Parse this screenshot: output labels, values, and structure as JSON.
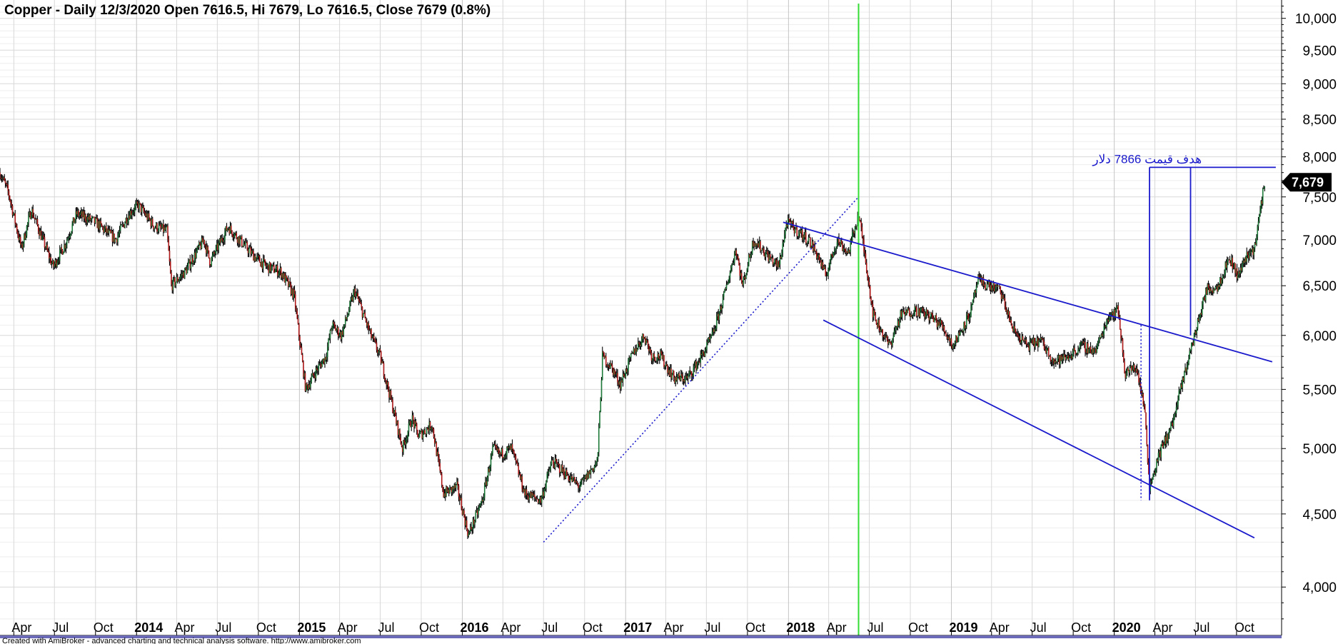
{
  "chart_data": {
    "type": "candlestick-line",
    "title": "Copper - Daily 12/3/2020 Open 7616.5, Hi 7679, Lo 7616.5, Close 7679 (0.8%)",
    "scale": "log",
    "ylim": [
      3700,
      10300
    ],
    "y_ticks": [
      {
        "value": 4000,
        "label": "4,000"
      },
      {
        "value": 4500,
        "label": "4,500"
      },
      {
        "value": 5000,
        "label": "5,000"
      },
      {
        "value": 5500,
        "label": "5,500"
      },
      {
        "value": 6000,
        "label": "6,000"
      },
      {
        "value": 6500,
        "label": "6,500"
      },
      {
        "value": 7000,
        "label": "7,000"
      },
      {
        "value": 7500,
        "label": "7,500"
      },
      {
        "value": 8000,
        "label": "8,000"
      },
      {
        "value": 8500,
        "label": "8,500"
      },
      {
        "value": 9000,
        "label": "9,000"
      },
      {
        "value": 9500,
        "label": "9,500"
      },
      {
        "value": 10000,
        "label": "10,000"
      }
    ],
    "xlim": [
      "2013-03-01",
      "2021-01-10"
    ],
    "x_ticks": [
      {
        "date": "2013-04-01",
        "label": "Apr",
        "year": false
      },
      {
        "date": "2013-07-01",
        "label": "Jul",
        "year": false
      },
      {
        "date": "2013-10-01",
        "label": "Oct",
        "year": false
      },
      {
        "date": "2014-01-01",
        "label": "2014",
        "year": true
      },
      {
        "date": "2014-04-01",
        "label": "Apr",
        "year": false
      },
      {
        "date": "2014-07-01",
        "label": "Jul",
        "year": false
      },
      {
        "date": "2014-10-01",
        "label": "Oct",
        "year": false
      },
      {
        "date": "2015-01-01",
        "label": "2015",
        "year": true
      },
      {
        "date": "2015-04-01",
        "label": "Apr",
        "year": false
      },
      {
        "date": "2015-07-01",
        "label": "Jul",
        "year": false
      },
      {
        "date": "2015-10-01",
        "label": "Oct",
        "year": false
      },
      {
        "date": "2016-01-01",
        "label": "2016",
        "year": true
      },
      {
        "date": "2016-04-01",
        "label": "Apr",
        "year": false
      },
      {
        "date": "2016-07-01",
        "label": "Jul",
        "year": false
      },
      {
        "date": "2016-10-01",
        "label": "Oct",
        "year": false
      },
      {
        "date": "2017-01-01",
        "label": "2017",
        "year": true
      },
      {
        "date": "2017-04-01",
        "label": "Apr",
        "year": false
      },
      {
        "date": "2017-07-01",
        "label": "Jul",
        "year": false
      },
      {
        "date": "2017-10-01",
        "label": "Oct",
        "year": false
      },
      {
        "date": "2018-01-01",
        "label": "2018",
        "year": true
      },
      {
        "date": "2018-04-01",
        "label": "Apr",
        "year": false
      },
      {
        "date": "2018-07-01",
        "label": "Jul",
        "year": false
      },
      {
        "date": "2018-10-01",
        "label": "Oct",
        "year": false
      },
      {
        "date": "2019-01-01",
        "label": "2019",
        "year": true
      },
      {
        "date": "2019-04-01",
        "label": "Apr",
        "year": false
      },
      {
        "date": "2019-07-01",
        "label": "Jul",
        "year": false
      },
      {
        "date": "2019-10-01",
        "label": "Oct",
        "year": false
      },
      {
        "date": "2020-01-01",
        "label": "2020",
        "year": true
      },
      {
        "date": "2020-04-01",
        "label": "Apr",
        "year": false
      },
      {
        "date": "2020-07-01",
        "label": "Jul",
        "year": false
      },
      {
        "date": "2020-10-01",
        "label": "Oct",
        "year": false
      }
    ],
    "series": [
      {
        "values": [
          {
            "date": "2013-03-01",
            "close": 7800
          },
          {
            "date": "2013-03-20",
            "close": 7550
          },
          {
            "date": "2013-04-18",
            "close": 6900
          },
          {
            "date": "2013-05-10",
            "close": 7350
          },
          {
            "date": "2013-06-28",
            "close": 6700
          },
          {
            "date": "2013-07-25",
            "close": 6950
          },
          {
            "date": "2013-08-20",
            "close": 7300
          },
          {
            "date": "2013-10-01",
            "close": 7200
          },
          {
            "date": "2013-11-15",
            "close": 7000
          },
          {
            "date": "2013-12-15",
            "close": 7300
          },
          {
            "date": "2014-01-05",
            "close": 7400
          },
          {
            "date": "2014-02-10",
            "close": 7150
          },
          {
            "date": "2014-03-10",
            "close": 7100
          },
          {
            "date": "2014-03-20",
            "close": 6500
          },
          {
            "date": "2014-04-20",
            "close": 6650
          },
          {
            "date": "2014-06-01",
            "close": 7000
          },
          {
            "date": "2014-06-15",
            "close": 6750
          },
          {
            "date": "2014-07-25",
            "close": 7150
          },
          {
            "date": "2014-08-20",
            "close": 7000
          },
          {
            "date": "2014-09-25",
            "close": 6800
          },
          {
            "date": "2014-10-20",
            "close": 6700
          },
          {
            "date": "2014-11-20",
            "close": 6650
          },
          {
            "date": "2014-12-20",
            "close": 6400
          },
          {
            "date": "2015-01-15",
            "close": 5500
          },
          {
            "date": "2015-02-05",
            "close": 5650
          },
          {
            "date": "2015-03-01",
            "close": 5800
          },
          {
            "date": "2015-03-15",
            "close": 6100
          },
          {
            "date": "2015-04-05",
            "close": 6000
          },
          {
            "date": "2015-05-05",
            "close": 6450
          },
          {
            "date": "2015-06-10",
            "close": 6000
          },
          {
            "date": "2015-07-01",
            "close": 5800
          },
          {
            "date": "2015-08-01",
            "close": 5300
          },
          {
            "date": "2015-08-20",
            "close": 5000
          },
          {
            "date": "2015-09-10",
            "close": 5250
          },
          {
            "date": "2015-09-25",
            "close": 5100
          },
          {
            "date": "2015-10-25",
            "close": 5200
          },
          {
            "date": "2015-11-20",
            "close": 4650
          },
          {
            "date": "2015-12-20",
            "close": 4700
          },
          {
            "date": "2016-01-15",
            "close": 4350
          },
          {
            "date": "2016-02-15",
            "close": 4600
          },
          {
            "date": "2016-03-10",
            "close": 5000
          },
          {
            "date": "2016-03-25",
            "close": 4950
          },
          {
            "date": "2016-04-20",
            "close": 5000
          },
          {
            "date": "2016-05-20",
            "close": 4650
          },
          {
            "date": "2016-06-25",
            "close": 4600
          },
          {
            "date": "2016-07-20",
            "close": 4900
          },
          {
            "date": "2016-08-20",
            "close": 4800
          },
          {
            "date": "2016-09-20",
            "close": 4700
          },
          {
            "date": "2016-10-10",
            "close": 4800
          },
          {
            "date": "2016-10-30",
            "close": 4900
          },
          {
            "date": "2016-11-10",
            "close": 5800
          },
          {
            "date": "2016-11-30",
            "close": 5700
          },
          {
            "date": "2016-12-20",
            "close": 5550
          },
          {
            "date": "2017-01-20",
            "close": 5850
          },
          {
            "date": "2017-02-12",
            "close": 6000
          },
          {
            "date": "2017-03-01",
            "close": 5800
          },
          {
            "date": "2017-03-20",
            "close": 5800
          },
          {
            "date": "2017-04-20",
            "close": 5600
          },
          {
            "date": "2017-05-20",
            "close": 5600
          },
          {
            "date": "2017-06-20",
            "close": 5800
          },
          {
            "date": "2017-07-15",
            "close": 6000
          },
          {
            "date": "2017-08-10",
            "close": 6400
          },
          {
            "date": "2017-09-05",
            "close": 6900
          },
          {
            "date": "2017-09-20",
            "close": 6500
          },
          {
            "date": "2017-10-15",
            "close": 7000
          },
          {
            "date": "2017-11-20",
            "close": 6800
          },
          {
            "date": "2017-12-10",
            "close": 6700
          },
          {
            "date": "2017-12-28",
            "close": 7200
          },
          {
            "date": "2018-01-20",
            "close": 7100
          },
          {
            "date": "2018-02-15",
            "close": 7000
          },
          {
            "date": "2018-03-10",
            "close": 6800
          },
          {
            "date": "2018-03-25",
            "close": 6600
          },
          {
            "date": "2018-04-20",
            "close": 7000
          },
          {
            "date": "2018-05-15",
            "close": 6850
          },
          {
            "date": "2018-06-07",
            "close": 7300
          },
          {
            "date": "2018-06-25",
            "close": 6700
          },
          {
            "date": "2018-07-10",
            "close": 6200
          },
          {
            "date": "2018-08-15",
            "close": 5900
          },
          {
            "date": "2018-09-10",
            "close": 6200
          },
          {
            "date": "2018-10-10",
            "close": 6250
          },
          {
            "date": "2018-11-10",
            "close": 6200
          },
          {
            "date": "2018-12-10",
            "close": 6100
          },
          {
            "date": "2019-01-05",
            "close": 5900
          },
          {
            "date": "2019-02-15",
            "close": 6250
          },
          {
            "date": "2019-03-01",
            "close": 6550
          },
          {
            "date": "2019-04-20",
            "close": 6450
          },
          {
            "date": "2019-05-20",
            "close": 6050
          },
          {
            "date": "2019-06-20",
            "close": 5900
          },
          {
            "date": "2019-07-20",
            "close": 5950
          },
          {
            "date": "2019-08-20",
            "close": 5750
          },
          {
            "date": "2019-09-20",
            "close": 5800
          },
          {
            "date": "2019-10-20",
            "close": 5900
          },
          {
            "date": "2019-11-20",
            "close": 5850
          },
          {
            "date": "2019-12-20",
            "close": 6200
          },
          {
            "date": "2020-01-10",
            "close": 6250
          },
          {
            "date": "2020-01-25",
            "close": 5650
          },
          {
            "date": "2020-02-20",
            "close": 5700
          },
          {
            "date": "2020-03-10",
            "close": 5300
          },
          {
            "date": "2020-03-20",
            "close": 4700
          },
          {
            "date": "2020-04-10",
            "close": 4950
          },
          {
            "date": "2020-05-10",
            "close": 5200
          },
          {
            "date": "2020-06-10",
            "close": 5700
          },
          {
            "date": "2020-07-05",
            "close": 6100
          },
          {
            "date": "2020-07-25",
            "close": 6450
          },
          {
            "date": "2020-08-20",
            "close": 6500
          },
          {
            "date": "2020-09-15",
            "close": 6800
          },
          {
            "date": "2020-10-05",
            "close": 6600
          },
          {
            "date": "2020-10-20",
            "close": 6800
          },
          {
            "date": "2020-11-10",
            "close": 6900
          },
          {
            "date": "2020-11-25",
            "close": 7400
          },
          {
            "date": "2020-12-03",
            "close": 7679
          }
        ]
      }
    ],
    "last_price_label": "7,679",
    "last_price_value": 7679,
    "annotations": {
      "target_text": "هدف قیمت 7866 دلار",
      "target_value": 7866,
      "vertical_marker_date": "2018-06-07",
      "trendlines": [
        {
          "name": "support-dotted",
          "style": "dotted",
          "from": {
            "date": "2016-07-01",
            "value": 4300
          },
          "to": {
            "date": "2018-06-07",
            "value": 7500
          }
        },
        {
          "name": "upper-channel",
          "style": "solid",
          "from": {
            "date": "2017-12-20",
            "value": 7200
          },
          "to": {
            "date": "2020-12-20",
            "value": 5750
          }
        },
        {
          "name": "lower-channel",
          "style": "solid",
          "from": {
            "date": "2018-03-20",
            "value": 6150
          },
          "to": {
            "date": "2020-11-10",
            "value": 4330
          }
        },
        {
          "name": "target-horizontal",
          "style": "solid",
          "from": {
            "date": "2020-03-20",
            "value": 7866
          },
          "to": {
            "date": "2020-12-28",
            "value": 7866
          }
        },
        {
          "name": "target-projection",
          "style": "solid",
          "from": {
            "date": "2020-06-20",
            "value": 6000
          },
          "to": {
            "date": "2020-06-20",
            "value": 7866
          }
        },
        {
          "name": "target-base",
          "style": "solid",
          "from": {
            "date": "2020-03-20",
            "value": 4600
          },
          "to": {
            "date": "2020-03-20",
            "value": 7866
          }
        },
        {
          "name": "drop-measure",
          "style": "dotted",
          "from": {
            "date": "2020-03-01",
            "value": 6100
          },
          "to": {
            "date": "2020-03-01",
            "value": 4600
          }
        }
      ]
    },
    "colors": {
      "up": "#1e7a3a",
      "down": "#b01a1a",
      "wick": "#000000",
      "trendline": "#1a1acc",
      "marker": "#33dd33",
      "grid": "#d8d8d8",
      "axis": "#000000",
      "footer_bar": "#6a6ab8"
    },
    "grid": true,
    "legend": "none"
  },
  "footer": {
    "text": "Created with AmiBroker - advanced charting and technical analysis software. http://www.amibroker.com"
  }
}
